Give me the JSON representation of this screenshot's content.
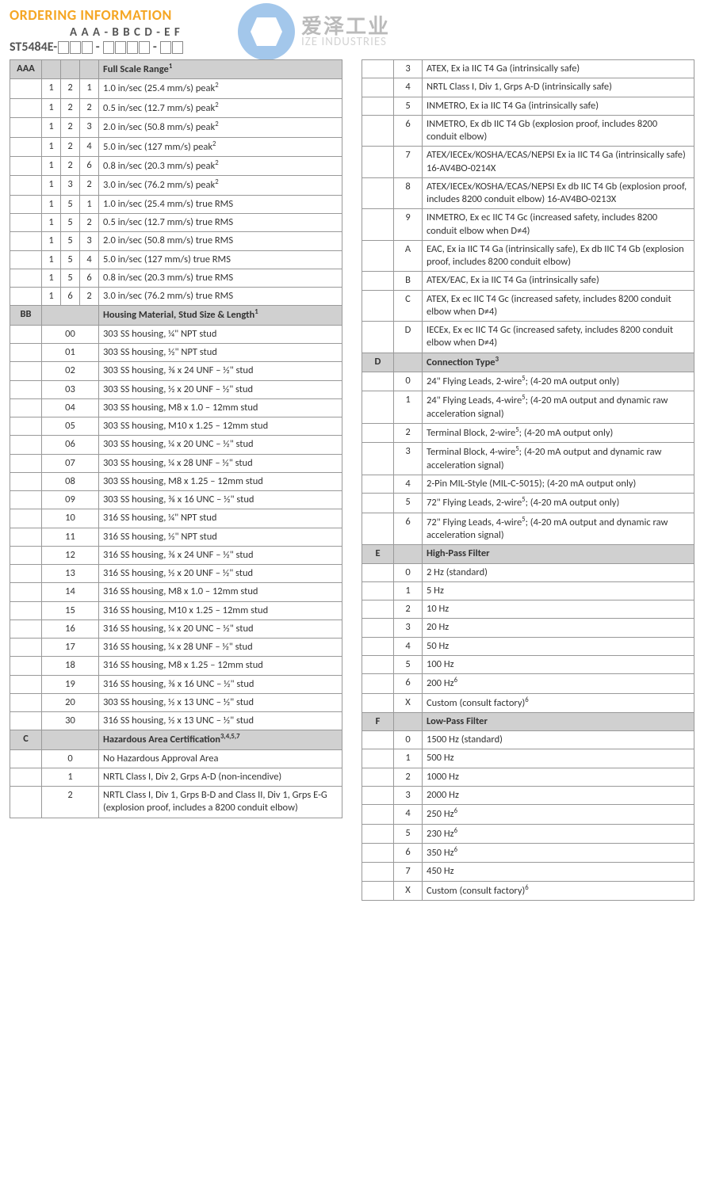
{
  "header": {
    "title": "ORDERING INFORMATION",
    "pattern": "A A A - B B C D - E F",
    "base": "ST5484E-"
  },
  "watermark": {
    "cn": "爱泽工业",
    "en": "IZE INDUSTRIES"
  },
  "sections": {
    "aaa": {
      "label": "AAA",
      "heading": "Full Scale Range",
      "heading_sup": "1",
      "rows": [
        {
          "c": [
            "1",
            "2",
            "1"
          ],
          "d": "1.0 in/sec (25.4 mm/s) peak",
          "sup": "2"
        },
        {
          "c": [
            "1",
            "2",
            "2"
          ],
          "d": "0.5 in/sec (12.7 mm/s) peak",
          "sup": "2"
        },
        {
          "c": [
            "1",
            "2",
            "3"
          ],
          "d": "2.0 in/sec (50.8 mm/s) peak",
          "sup": "2"
        },
        {
          "c": [
            "1",
            "2",
            "4"
          ],
          "d": "5.0 in/sec (127 mm/s) peak",
          "sup": "2"
        },
        {
          "c": [
            "1",
            "2",
            "6"
          ],
          "d": "0.8 in/sec (20.3 mm/s) peak",
          "sup": "2"
        },
        {
          "c": [
            "1",
            "3",
            "2"
          ],
          "d": "3.0 in/sec (76.2 mm/s) peak",
          "sup": "2"
        },
        {
          "c": [
            "1",
            "5",
            "1"
          ],
          "d": "1.0 in/sec (25.4 mm/s) true RMS"
        },
        {
          "c": [
            "1",
            "5",
            "2"
          ],
          "d": "0.5 in/sec (12.7 mm/s) true RMS"
        },
        {
          "c": [
            "1",
            "5",
            "3"
          ],
          "d": "2.0 in/sec (50.8 mm/s) true RMS"
        },
        {
          "c": [
            "1",
            "5",
            "4"
          ],
          "d": "5.0 in/sec (127 mm/s) true RMS"
        },
        {
          "c": [
            "1",
            "5",
            "6"
          ],
          "d": "0.8 in/sec (20.3 mm/s) true RMS"
        },
        {
          "c": [
            "1",
            "6",
            "2"
          ],
          "d": "3.0 in/sec (76.2 mm/s) true RMS"
        }
      ]
    },
    "bb": {
      "label": "BB",
      "heading": "Housing Material, Stud Size & Length",
      "heading_sup": "1",
      "rows": [
        {
          "c": "00",
          "d": "303 SS housing, ¼\" NPT stud"
        },
        {
          "c": "01",
          "d": "303 SS housing, ½\" NPT stud"
        },
        {
          "c": "02",
          "d": "303 SS housing, ⅜ x 24 UNF – ½\" stud"
        },
        {
          "c": "03",
          "d": "303 SS housing, ½ x 20 UNF – ½\" stud"
        },
        {
          "c": "04",
          "d": "303 SS housing, M8 x 1.0 – 12mm stud"
        },
        {
          "c": "05",
          "d": "303 SS housing, M10 x 1.25 – 12mm stud"
        },
        {
          "c": "06",
          "d": "303 SS housing, ¼ x 20 UNC – ½\" stud"
        },
        {
          "c": "07",
          "d": "303 SS housing, ¼ x 28 UNF – ½\" stud"
        },
        {
          "c": "08",
          "d": "303 SS housing, M8 x 1.25 – 12mm stud"
        },
        {
          "c": "09",
          "d": "303 SS housing, ⅜ x 16 UNC – ½\" stud"
        },
        {
          "c": "10",
          "d": "316 SS housing, ¼\" NPT stud"
        },
        {
          "c": "11",
          "d": "316 SS housing, ½\" NPT stud"
        },
        {
          "c": "12",
          "d": "316 SS housing, ⅜ x 24 UNF – ½\" stud"
        },
        {
          "c": "13",
          "d": "316 SS housing, ½ x 20 UNF – ½\" stud"
        },
        {
          "c": "14",
          "d": "316 SS housing, M8 x 1.0 – 12mm stud"
        },
        {
          "c": "15",
          "d": "316 SS housing, M10 x 1.25 – 12mm stud"
        },
        {
          "c": "16",
          "d": "316 SS housing, ¼ x 20 UNC – ½\" stud"
        },
        {
          "c": "17",
          "d": "316 SS housing, ¼ x 28 UNF – ½\" stud"
        },
        {
          "c": "18",
          "d": "316 SS housing, M8 x 1.25 – 12mm stud"
        },
        {
          "c": "19",
          "d": "316 SS housing, ⅜ x 16 UNC – ½\" stud"
        },
        {
          "c": "20",
          "d": "303 SS housing, ½ x 13 UNC – ½\" stud"
        },
        {
          "c": "30",
          "d": "316 SS housing, ½ x 13 UNC – ½\" stud"
        }
      ]
    },
    "c": {
      "label": "C",
      "heading": "Hazardous Area Certification",
      "heading_sup": "3,4,5,7",
      "rows": [
        {
          "c": "0",
          "d": "No Hazardous Approval Area"
        },
        {
          "c": "1",
          "d": "NRTL Class I, Div 2, Grps A-D (non-incendive)"
        },
        {
          "c": "2",
          "d": "NRTL Class I, Div 1, Grps B-D and Class II, Div 1, Grps E-G (explosion proof, includes a 8200 conduit elbow)"
        }
      ]
    },
    "c_cont": {
      "rows": [
        {
          "c": "3",
          "d": "ATEX, Ex ia IIC T4 Ga (intrinsically safe)"
        },
        {
          "c": "4",
          "d": "NRTL Class I, Div 1, Grps A-D (intrinsically safe)"
        },
        {
          "c": "5",
          "d": "INMETRO, Ex ia IIC T4 Ga (intrinsically safe)"
        },
        {
          "c": "6",
          "d": "INMETRO, Ex db IIC T4 Gb (explosion proof, includes 8200 conduit elbow)"
        },
        {
          "c": "7",
          "d": "ATEX/IECEx/KOSHA/ECAS/NEPSI Ex ia IIC T4 Ga (intrinsically safe) 16-AV4BO-0214X"
        },
        {
          "c": "8",
          "d": "ATEX/IECEx/KOSHA/ECAS/NEPSI Ex db IIC T4 Gb (explosion proof, includes 8200 conduit elbow) 16-AV4BO-0213X"
        },
        {
          "c": "9",
          "d": "INMETRO, Ex ec IIC T4 Gc (increased safety, includes 8200 conduit elbow when D≠4)"
        },
        {
          "c": "A",
          "d": "EAC, Ex ia IIC T4 Ga (intrinsically safe), Ex db IIC T4 Gb (explosion proof, includes 8200 conduit elbow)"
        },
        {
          "c": "B",
          "d": "ATEX/EAC, Ex ia IIC T4 Ga (intrinsically safe)"
        },
        {
          "c": "C",
          "d": "ATEX, Ex ec IIC T4 Gc (increased safety, includes 8200 conduit elbow when D≠4)"
        },
        {
          "c": "D",
          "d": "IECEx, Ex ec IIC T4 Gc (increased safety, includes 8200 conduit elbow when D≠4)"
        }
      ]
    },
    "d": {
      "label": "D",
      "heading": "Connection Type",
      "heading_sup": "3",
      "rows": [
        {
          "c": "0",
          "d": "24\" Flying Leads, 2-wire",
          "sup": "5",
          "tail": "; (4-20 mA output only)"
        },
        {
          "c": "1",
          "d": "24\" Flying Leads, 4-wire",
          "sup": "5",
          "tail": ";  (4-20 mA output and dynamic raw acceleration signal)"
        },
        {
          "c": "2",
          "d": "Terminal Block, 2-wire",
          "sup": "5",
          "tail": ";  (4-20 mA output only)"
        },
        {
          "c": "3",
          "d": "Terminal Block, 4-wire",
          "sup": "5",
          "tail": "; (4-20 mA output and dynamic raw acceleration signal)"
        },
        {
          "c": "4",
          "d": "2-Pin MIL-Style (MIL-C-5015); (4-20 mA output only)"
        },
        {
          "c": "5",
          "d": "72\" Flying Leads, 2-wire",
          "sup": "5",
          "tail": "; (4-20 mA output only)"
        },
        {
          "c": "6",
          "d": "72\" Flying Leads, 4-wire",
          "sup": "5",
          "tail": "; (4-20 mA output and dynamic raw acceleration signal)"
        }
      ]
    },
    "e": {
      "label": "E",
      "heading": "High-Pass Filter",
      "rows": [
        {
          "c": "0",
          "d": "2 Hz (standard)"
        },
        {
          "c": "1",
          "d": "5 Hz"
        },
        {
          "c": "2",
          "d": "10 Hz"
        },
        {
          "c": "3",
          "d": "20 Hz"
        },
        {
          "c": "4",
          "d": "50 Hz"
        },
        {
          "c": "5",
          "d": "100 Hz"
        },
        {
          "c": "6",
          "d": "200 Hz",
          "sup": "6"
        },
        {
          "c": "X",
          "d": "Custom (consult factory)",
          "sup": "6"
        }
      ]
    },
    "f": {
      "label": "F",
      "heading": "Low-Pass Filter",
      "rows": [
        {
          "c": "0",
          "d": "1500 Hz (standard)"
        },
        {
          "c": "1",
          "d": "500 Hz"
        },
        {
          "c": "2",
          "d": "1000 Hz"
        },
        {
          "c": "3",
          "d": "2000 Hz"
        },
        {
          "c": "4",
          "d": "250 Hz",
          "sup": "6"
        },
        {
          "c": "5",
          "d": "230 Hz",
          "sup": "6"
        },
        {
          "c": "6",
          "d": "350 Hz",
          "sup": "6"
        },
        {
          "c": "7",
          "d": "450 Hz"
        },
        {
          "c": "X",
          "d": "Custom (consult factory)",
          "sup": "6"
        }
      ]
    }
  }
}
